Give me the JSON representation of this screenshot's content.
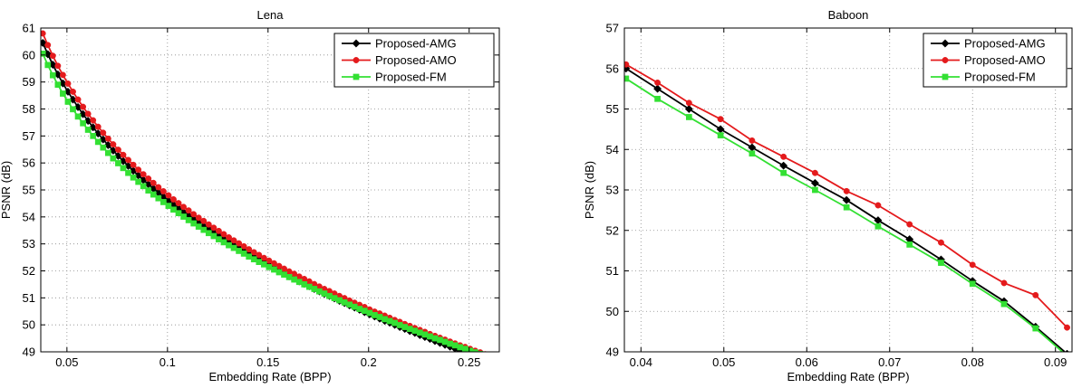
{
  "chart_data": [
    {
      "type": "line",
      "title": "Lena",
      "xlabel": "Embedding Rate (BPP)",
      "ylabel": "PSNR (dB)",
      "xlim": [
        0.037,
        0.265
      ],
      "ylim": [
        49,
        61
      ],
      "xticks": [
        "0.05",
        "0.1",
        "0.15",
        "0.2",
        "0.25"
      ],
      "xtick_values": [
        0.05,
        0.1,
        0.15,
        0.2,
        0.25
      ],
      "yticks": [
        "49",
        "50",
        "51",
        "52",
        "53",
        "54",
        "55",
        "56",
        "57",
        "58",
        "59",
        "60",
        "61"
      ],
      "ytick_values": [
        49,
        50,
        51,
        52,
        53,
        54,
        55,
        56,
        57,
        58,
        59,
        60,
        61
      ],
      "grid": true,
      "legend_position": "top-right",
      "series": [
        {
          "name": "Proposed-AMG",
          "color": "#000000",
          "marker": "diamond",
          "x": [
            0.038,
            0.0405,
            0.043,
            0.0455,
            0.048,
            0.0505,
            0.053,
            0.0555,
            0.058,
            0.0605,
            0.063,
            0.0655,
            0.068,
            0.0705,
            0.073,
            0.0755,
            0.078,
            0.0805,
            0.083,
            0.0855,
            0.088,
            0.0905,
            0.093,
            0.0955,
            0.098,
            0.1005,
            0.103,
            0.1055,
            0.108,
            0.1105,
            0.113,
            0.1155,
            0.118,
            0.1205,
            0.123,
            0.1255,
            0.128,
            0.1305,
            0.133,
            0.1355,
            0.138,
            0.1405,
            0.143,
            0.1455,
            0.148,
            0.1505,
            0.153,
            0.1555,
            0.158,
            0.1605,
            0.163,
            0.1655,
            0.168,
            0.1705,
            0.173,
            0.1755,
            0.178,
            0.1805,
            0.183,
            0.1855,
            0.188,
            0.1905,
            0.193,
            0.1955,
            0.198,
            0.2005,
            0.203,
            0.2055,
            0.208,
            0.2105,
            0.213,
            0.2155,
            0.218,
            0.2205,
            0.223,
            0.2255,
            0.228,
            0.2305,
            0.233,
            0.2355,
            0.238,
            0.2405,
            0.243,
            0.2455,
            0.248,
            0.2505,
            0.253,
            0.2555,
            0.258,
            0.2605,
            0.263
          ],
          "y": [
            60.45,
            60.03,
            59.64,
            59.28,
            58.95,
            58.64,
            58.35,
            58.07,
            57.81,
            57.56,
            57.32,
            57.09,
            56.87,
            56.66,
            56.46,
            56.26,
            56.07,
            55.89,
            55.71,
            55.54,
            55.37,
            55.21,
            55.05,
            54.9,
            54.75,
            54.6,
            54.46,
            54.32,
            54.18,
            54.05,
            53.92,
            53.79,
            53.66,
            53.54,
            53.42,
            53.3,
            53.18,
            53.06,
            52.95,
            52.84,
            52.73,
            52.62,
            52.51,
            52.41,
            52.3,
            52.2,
            52.1,
            52.0,
            51.9,
            51.8,
            51.71,
            51.61,
            51.52,
            51.43,
            51.33,
            51.24,
            51.15,
            51.07,
            50.98,
            50.89,
            50.81,
            50.72,
            50.64,
            50.56,
            50.47,
            50.39,
            50.31,
            50.23,
            50.15,
            50.08,
            50.0,
            49.92,
            49.85,
            49.77,
            49.7,
            49.62,
            49.55,
            49.48,
            49.4,
            49.33,
            49.26,
            49.19,
            49.12,
            49.05,
            48.98,
            48.91,
            48.85,
            48.78,
            48.71,
            48.65,
            48.58
          ]
        },
        {
          "name": "Proposed-AMO",
          "color": "#e41a1c",
          "marker": "circle",
          "x": [
            0.038,
            0.0405,
            0.043,
            0.0455,
            0.048,
            0.0505,
            0.053,
            0.0555,
            0.058,
            0.0605,
            0.063,
            0.0655,
            0.068,
            0.0705,
            0.073,
            0.0755,
            0.078,
            0.0805,
            0.083,
            0.0855,
            0.088,
            0.0905,
            0.093,
            0.0955,
            0.098,
            0.1005,
            0.103,
            0.1055,
            0.108,
            0.1105,
            0.113,
            0.1155,
            0.118,
            0.1205,
            0.123,
            0.1255,
            0.128,
            0.1305,
            0.133,
            0.1355,
            0.138,
            0.1405,
            0.143,
            0.1455,
            0.148,
            0.1505,
            0.153,
            0.1555,
            0.158,
            0.1605,
            0.163,
            0.1655,
            0.168,
            0.1705,
            0.173,
            0.1755,
            0.178,
            0.1805,
            0.183,
            0.1855,
            0.188,
            0.1905,
            0.193,
            0.1955,
            0.198,
            0.2005,
            0.203,
            0.2055,
            0.208,
            0.2105,
            0.213,
            0.2155,
            0.218,
            0.2205,
            0.223,
            0.2255,
            0.228,
            0.2305,
            0.233,
            0.2355,
            0.238,
            0.2405,
            0.243,
            0.2455,
            0.248,
            0.2505,
            0.253,
            0.2555,
            0.258,
            0.2605,
            0.263
          ],
          "y": [
            60.8,
            60.37,
            59.97,
            59.6,
            59.26,
            58.94,
            58.64,
            58.35,
            58.08,
            57.82,
            57.58,
            57.34,
            57.12,
            56.9,
            56.69,
            56.49,
            56.3,
            56.11,
            55.93,
            55.75,
            55.58,
            55.42,
            55.26,
            55.1,
            54.95,
            54.8,
            54.65,
            54.51,
            54.37,
            54.24,
            54.1,
            53.97,
            53.85,
            53.72,
            53.6,
            53.48,
            53.36,
            53.24,
            53.13,
            53.02,
            52.91,
            52.8,
            52.69,
            52.59,
            52.48,
            52.38,
            52.28,
            52.18,
            52.08,
            51.98,
            51.89,
            51.79,
            51.7,
            51.61,
            51.51,
            51.42,
            51.33,
            51.25,
            51.16,
            51.07,
            50.99,
            50.9,
            50.82,
            50.74,
            50.66,
            50.57,
            50.49,
            50.42,
            50.34,
            50.26,
            50.18,
            50.11,
            50.03,
            49.96,
            49.88,
            49.81,
            49.74,
            49.66,
            49.59,
            49.52,
            49.45,
            49.38,
            49.31,
            49.24,
            49.18,
            49.11,
            49.04,
            48.98,
            48.91,
            48.85,
            48.78
          ]
        },
        {
          "name": "Proposed-FM",
          "color": "#33e033",
          "marker": "square",
          "x": [
            0.038,
            0.0405,
            0.043,
            0.0455,
            0.048,
            0.0505,
            0.053,
            0.0555,
            0.058,
            0.0605,
            0.063,
            0.0655,
            0.068,
            0.0705,
            0.073,
            0.0755,
            0.078,
            0.0805,
            0.083,
            0.0855,
            0.088,
            0.0905,
            0.093,
            0.0955,
            0.098,
            0.1005,
            0.103,
            0.1055,
            0.108,
            0.1105,
            0.113,
            0.1155,
            0.118,
            0.1205,
            0.123,
            0.1255,
            0.128,
            0.1305,
            0.133,
            0.1355,
            0.138,
            0.1405,
            0.143,
            0.1455,
            0.148,
            0.1505,
            0.153,
            0.1555,
            0.158,
            0.1605,
            0.163,
            0.1655,
            0.168,
            0.1705,
            0.173,
            0.1755,
            0.178,
            0.1805,
            0.183,
            0.1855,
            0.188,
            0.1905,
            0.193,
            0.1955,
            0.198,
            0.2005,
            0.203,
            0.2055,
            0.208,
            0.2105,
            0.213,
            0.2155,
            0.218,
            0.2205,
            0.223,
            0.2255,
            0.228,
            0.2305,
            0.233,
            0.2355,
            0.238,
            0.2405,
            0.243,
            0.2455,
            0.248,
            0.2505,
            0.253,
            0.2555,
            0.258,
            0.2605,
            0.263
          ],
          "y": [
            60.05,
            59.63,
            59.25,
            58.9,
            58.57,
            58.27,
            57.99,
            57.72,
            57.47,
            57.23,
            57.0,
            56.78,
            56.57,
            56.37,
            56.17,
            55.99,
            55.81,
            55.63,
            55.46,
            55.3,
            55.14,
            54.98,
            54.83,
            54.69,
            54.55,
            54.41,
            54.27,
            54.14,
            54.01,
            53.88,
            53.76,
            53.64,
            53.52,
            53.4,
            53.29,
            53.17,
            53.06,
            52.95,
            52.85,
            52.74,
            52.64,
            52.53,
            52.43,
            52.33,
            52.24,
            52.14,
            52.05,
            51.95,
            51.86,
            51.77,
            51.68,
            51.59,
            51.5,
            51.41,
            51.33,
            51.24,
            51.16,
            51.07,
            50.99,
            50.91,
            50.83,
            50.75,
            50.67,
            50.59,
            50.52,
            50.44,
            50.36,
            50.29,
            50.21,
            50.14,
            50.07,
            49.99,
            49.92,
            49.85,
            49.78,
            49.71,
            49.64,
            49.57,
            49.5,
            49.44,
            49.37,
            49.3,
            49.24,
            49.17,
            49.11,
            49.04,
            48.98,
            48.92,
            48.85,
            48.79,
            48.73
          ]
        }
      ]
    },
    {
      "type": "line",
      "title": "Baboon",
      "xlabel": "Embedding Rate (BPP)",
      "ylabel": "PSNR (dB)",
      "xlim": [
        0.038,
        0.092
      ],
      "ylim": [
        49,
        57
      ],
      "xticks": [
        "0.04",
        "0.05",
        "0.06",
        "0.07",
        "0.08",
        "0.09"
      ],
      "xtick_values": [
        0.04,
        0.05,
        0.06,
        0.07,
        0.08,
        0.09
      ],
      "yticks": [
        "49",
        "50",
        "51",
        "52",
        "53",
        "54",
        "55",
        "56",
        "57"
      ],
      "ytick_values": [
        49,
        50,
        51,
        52,
        53,
        54,
        55,
        56,
        57
      ],
      "grid": true,
      "legend_position": "top-right",
      "series": [
        {
          "name": "Proposed-AMG",
          "color": "#000000",
          "marker": "diamond",
          "x": [
            0.0382,
            0.042,
            0.0458,
            0.0496,
            0.0534,
            0.0572,
            0.061,
            0.0648,
            0.0686,
            0.0724,
            0.0762,
            0.08,
            0.0838,
            0.0876,
            0.0914
          ],
          "y": [
            56.0,
            55.5,
            55.0,
            54.5,
            54.05,
            53.6,
            53.17,
            52.75,
            52.25,
            51.78,
            51.28,
            50.75,
            50.25,
            49.62,
            48.95
          ]
        },
        {
          "name": "Proposed-AMO",
          "color": "#e41a1c",
          "marker": "circle",
          "x": [
            0.0382,
            0.042,
            0.0458,
            0.0496,
            0.0534,
            0.0572,
            0.061,
            0.0648,
            0.0686,
            0.0724,
            0.0762,
            0.08,
            0.0838,
            0.0876,
            0.0914
          ],
          "y": [
            56.1,
            55.65,
            55.15,
            54.75,
            54.22,
            53.82,
            53.42,
            52.97,
            52.62,
            52.15,
            51.7,
            51.15,
            50.7,
            50.4,
            49.6
          ]
        },
        {
          "name": "Proposed-FM",
          "color": "#33e033",
          "marker": "square",
          "x": [
            0.0382,
            0.042,
            0.0458,
            0.0496,
            0.0534,
            0.0572,
            0.061,
            0.0648,
            0.0686,
            0.0724,
            0.0762,
            0.08,
            0.0838,
            0.0876,
            0.0914
          ],
          "y": [
            55.75,
            55.25,
            54.8,
            54.35,
            53.9,
            53.42,
            53.0,
            52.57,
            52.1,
            51.65,
            51.2,
            50.68,
            50.18,
            49.58,
            48.9
          ]
        }
      ]
    }
  ]
}
